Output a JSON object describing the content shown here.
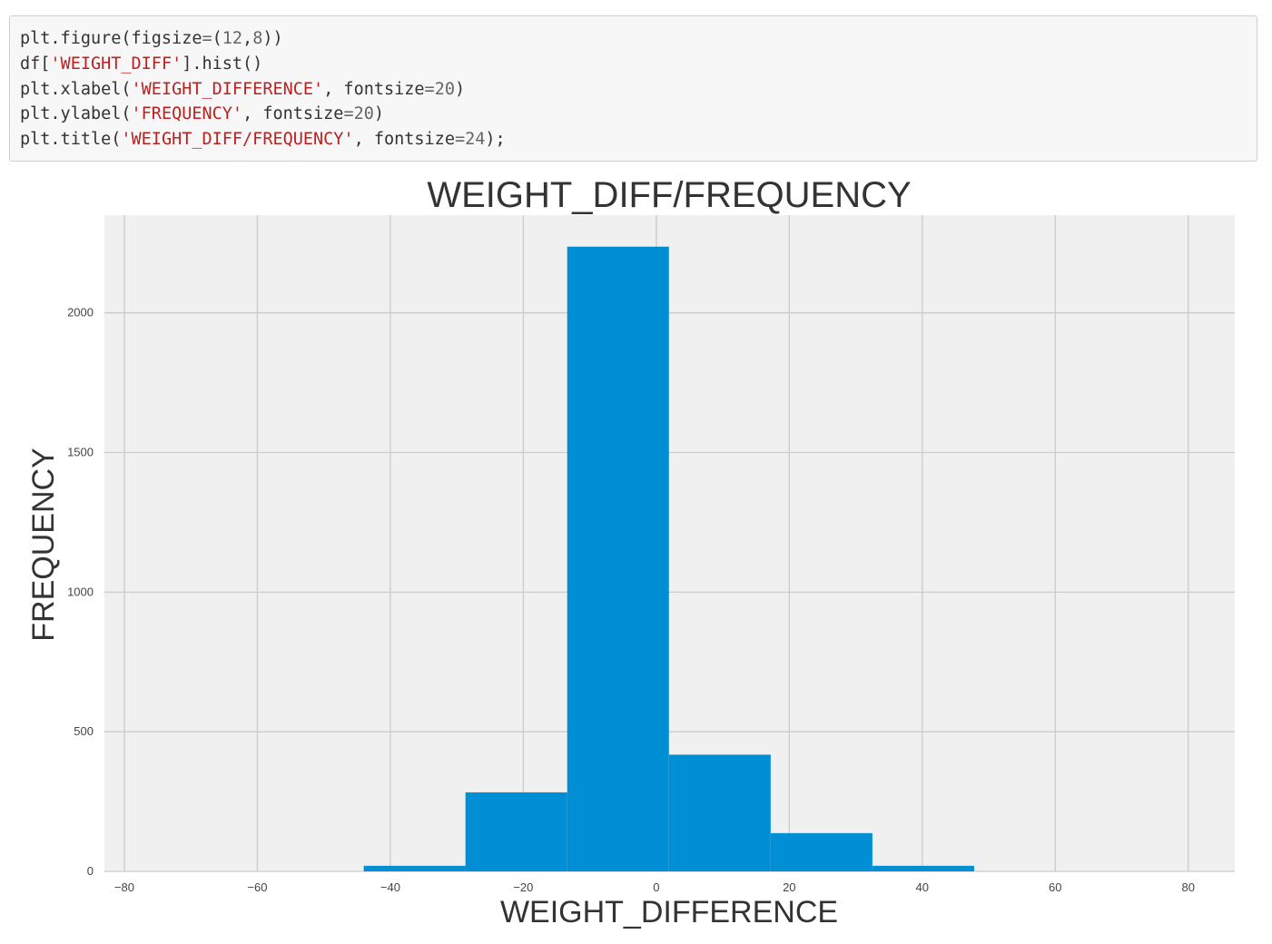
{
  "code_cell": {
    "lines": [
      [
        {
          "t": "plt.figure(figsize",
          "k": "p"
        },
        {
          "t": "=",
          "k": "o"
        },
        {
          "t": "(",
          "k": "p"
        },
        {
          "t": "12",
          "k": "n"
        },
        {
          "t": ",",
          "k": "p"
        },
        {
          "t": "8",
          "k": "n"
        },
        {
          "t": "))",
          "k": "p"
        }
      ],
      [
        {
          "t": "df[",
          "k": "p"
        },
        {
          "t": "'WEIGHT_DIFF'",
          "k": "s"
        },
        {
          "t": "].hist()",
          "k": "p"
        }
      ],
      [
        {
          "t": "plt.xlabel(",
          "k": "p"
        },
        {
          "t": "'WEIGHT_DIFFERENCE'",
          "k": "s"
        },
        {
          "t": ", fontsize",
          "k": "p"
        },
        {
          "t": "=",
          "k": "o"
        },
        {
          "t": "20",
          "k": "n"
        },
        {
          "t": ")",
          "k": "p"
        }
      ],
      [
        {
          "t": "plt.ylabel(",
          "k": "p"
        },
        {
          "t": "'FREQUENCY'",
          "k": "s"
        },
        {
          "t": ", fontsize",
          "k": "p"
        },
        {
          "t": "=",
          "k": "o"
        },
        {
          "t": "20",
          "k": "n"
        },
        {
          "t": ")",
          "k": "p"
        }
      ],
      [
        {
          "t": "plt.title(",
          "k": "p"
        },
        {
          "t": "'WEIGHT_DIFF/FREQUENCY'",
          "k": "s"
        },
        {
          "t": ", fontsize",
          "k": "p"
        },
        {
          "t": "=",
          "k": "o"
        },
        {
          "t": "24",
          "k": "n"
        },
        {
          "t": ");",
          "k": "p"
        }
      ]
    ]
  },
  "chart_data": {
    "type": "bar",
    "title": "WEIGHT_DIFF/FREQUENCY",
    "xlabel": "WEIGHT_DIFFERENCE",
    "ylabel": "FREQUENCY",
    "bin_edges": [
      -44,
      -28.7,
      -13.4,
      1.9,
      17.2,
      32.5,
      47.8
    ],
    "values": [
      20,
      283,
      2237,
      418,
      137,
      20
    ],
    "xlim": [
      -83,
      87
    ],
    "ylim": [
      0,
      2350
    ],
    "xticks": [
      -80,
      -60,
      -40,
      -20,
      0,
      20,
      40,
      60,
      80
    ],
    "xtick_labels": [
      "−80",
      "−60",
      "−40",
      "−20",
      "0",
      "20",
      "40",
      "60",
      "80"
    ],
    "yticks": [
      0,
      500,
      1000,
      1500,
      2000
    ],
    "ytick_labels": [
      "0",
      "500",
      "1000",
      "1500",
      "2000"
    ],
    "grid": true,
    "bar_color": "#008fd5",
    "plot_background": "#f0f0f0",
    "grid_color": "#cbcbcb"
  }
}
